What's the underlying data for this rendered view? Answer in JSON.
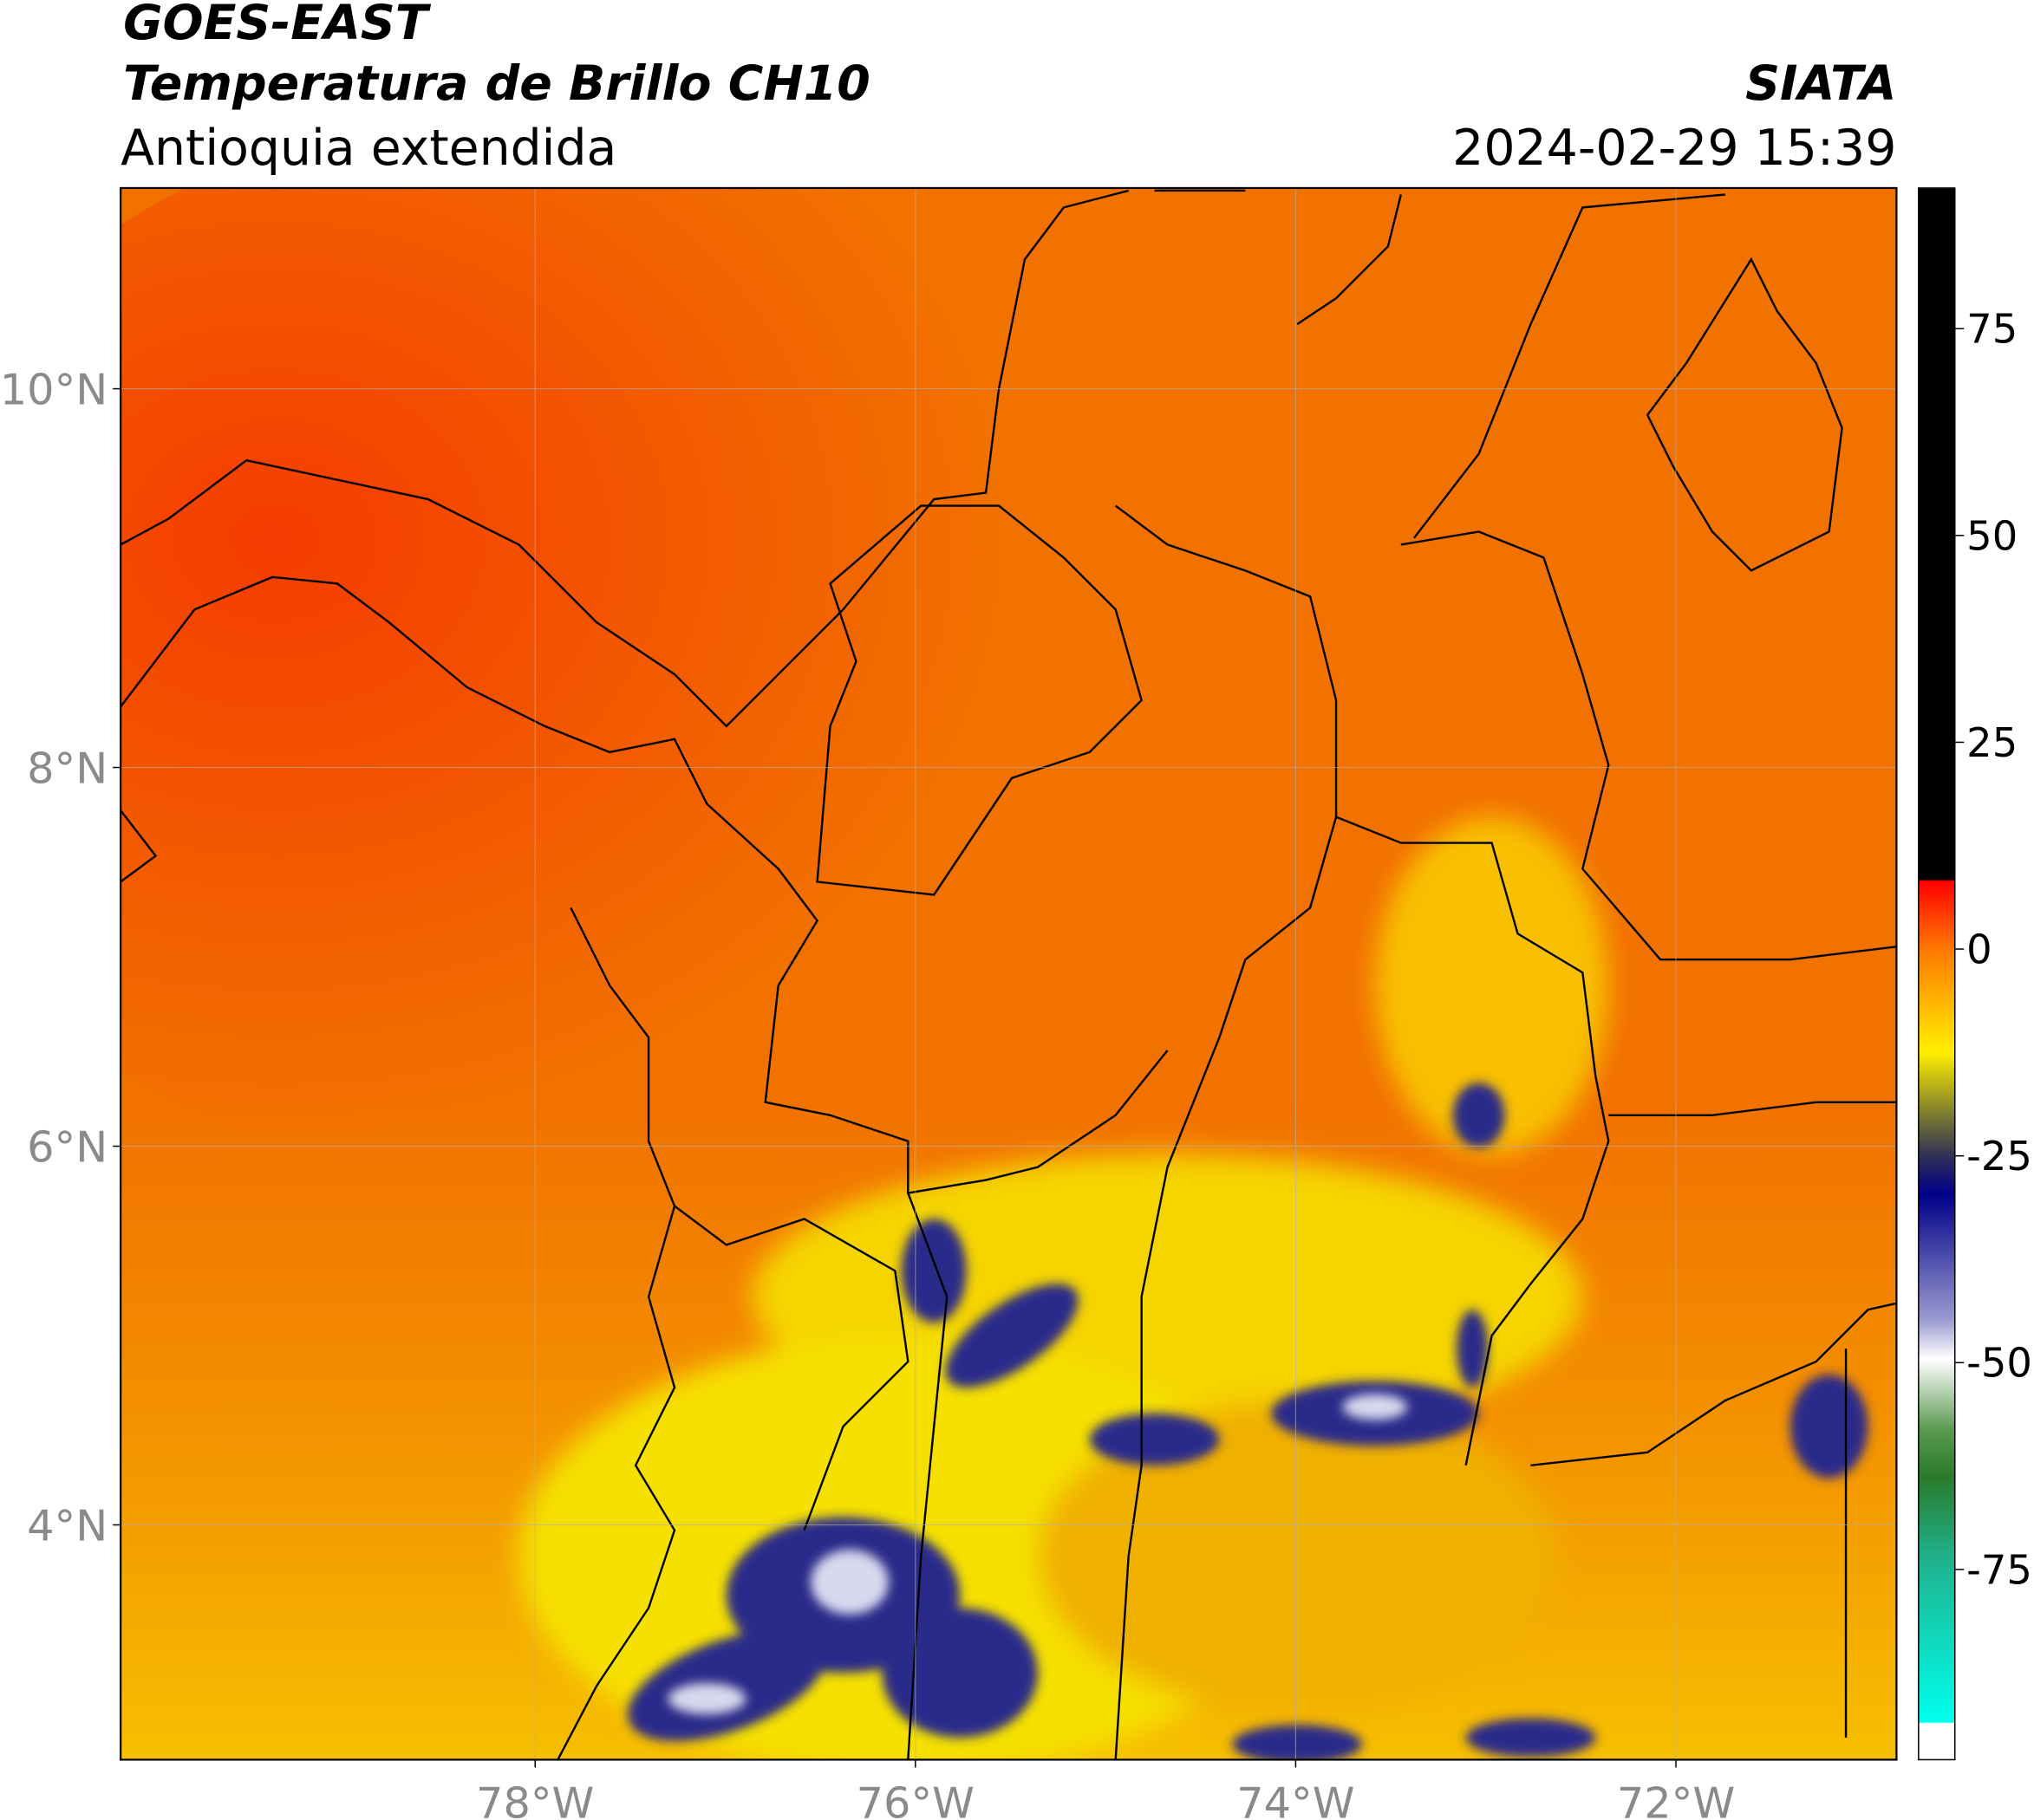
{
  "header": {
    "title": "GOES-EAST",
    "subtitle": "Temperatura de Brillo CH10",
    "region": "Antioquia extendida",
    "agency": "SIATA",
    "datetime": "2024-02-29 15:39"
  },
  "map": {
    "xlim": [
      -80.18,
      -70.84
    ],
    "ylim": [
      2.76,
      11.06
    ],
    "grid": true,
    "xticks": [
      {
        "value": -78,
        "label": "78°W"
      },
      {
        "value": -76,
        "label": "76°W"
      },
      {
        "value": -74,
        "label": "74°W"
      },
      {
        "value": -72,
        "label": "72°W"
      }
    ],
    "yticks": [
      {
        "value": 10,
        "label": "10°N"
      },
      {
        "value": 8,
        "label": "8°N"
      },
      {
        "value": 6,
        "label": "6°N"
      },
      {
        "value": 4,
        "label": "4°N"
      }
    ]
  },
  "colorbar": {
    "lim": [
      -98,
      92
    ],
    "ticks": [
      75,
      50,
      25,
      0,
      -25,
      -50,
      -75
    ]
  }
}
